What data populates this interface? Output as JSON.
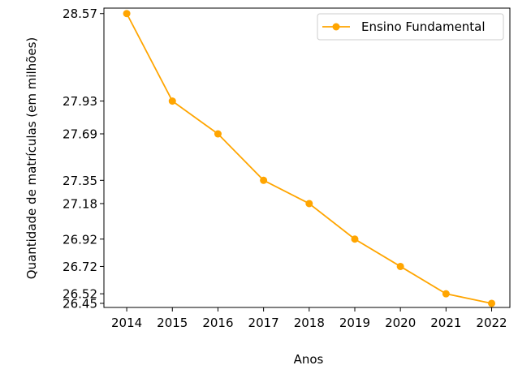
{
  "chart_data": {
    "type": "line",
    "title": "",
    "xlabel": "Anos",
    "ylabel": "Quantidade de matrículas (em milhões)",
    "x": [
      "2014",
      "2015",
      "2016",
      "2017",
      "2018",
      "2019",
      "2020",
      "2021",
      "2022"
    ],
    "series": [
      {
        "name": "Ensino Fundamental",
        "values": [
          28.57,
          27.93,
          27.69,
          27.35,
          27.18,
          26.92,
          26.72,
          26.52,
          26.45
        ],
        "color": "#FFA500",
        "marker": "circle"
      }
    ],
    "yticks": [
      26.45,
      26.52,
      26.72,
      26.92,
      27.18,
      27.35,
      27.69,
      27.93,
      28.57
    ],
    "ylim": [
      26.42,
      28.61
    ],
    "grid": false,
    "legend_position": "top-right"
  }
}
